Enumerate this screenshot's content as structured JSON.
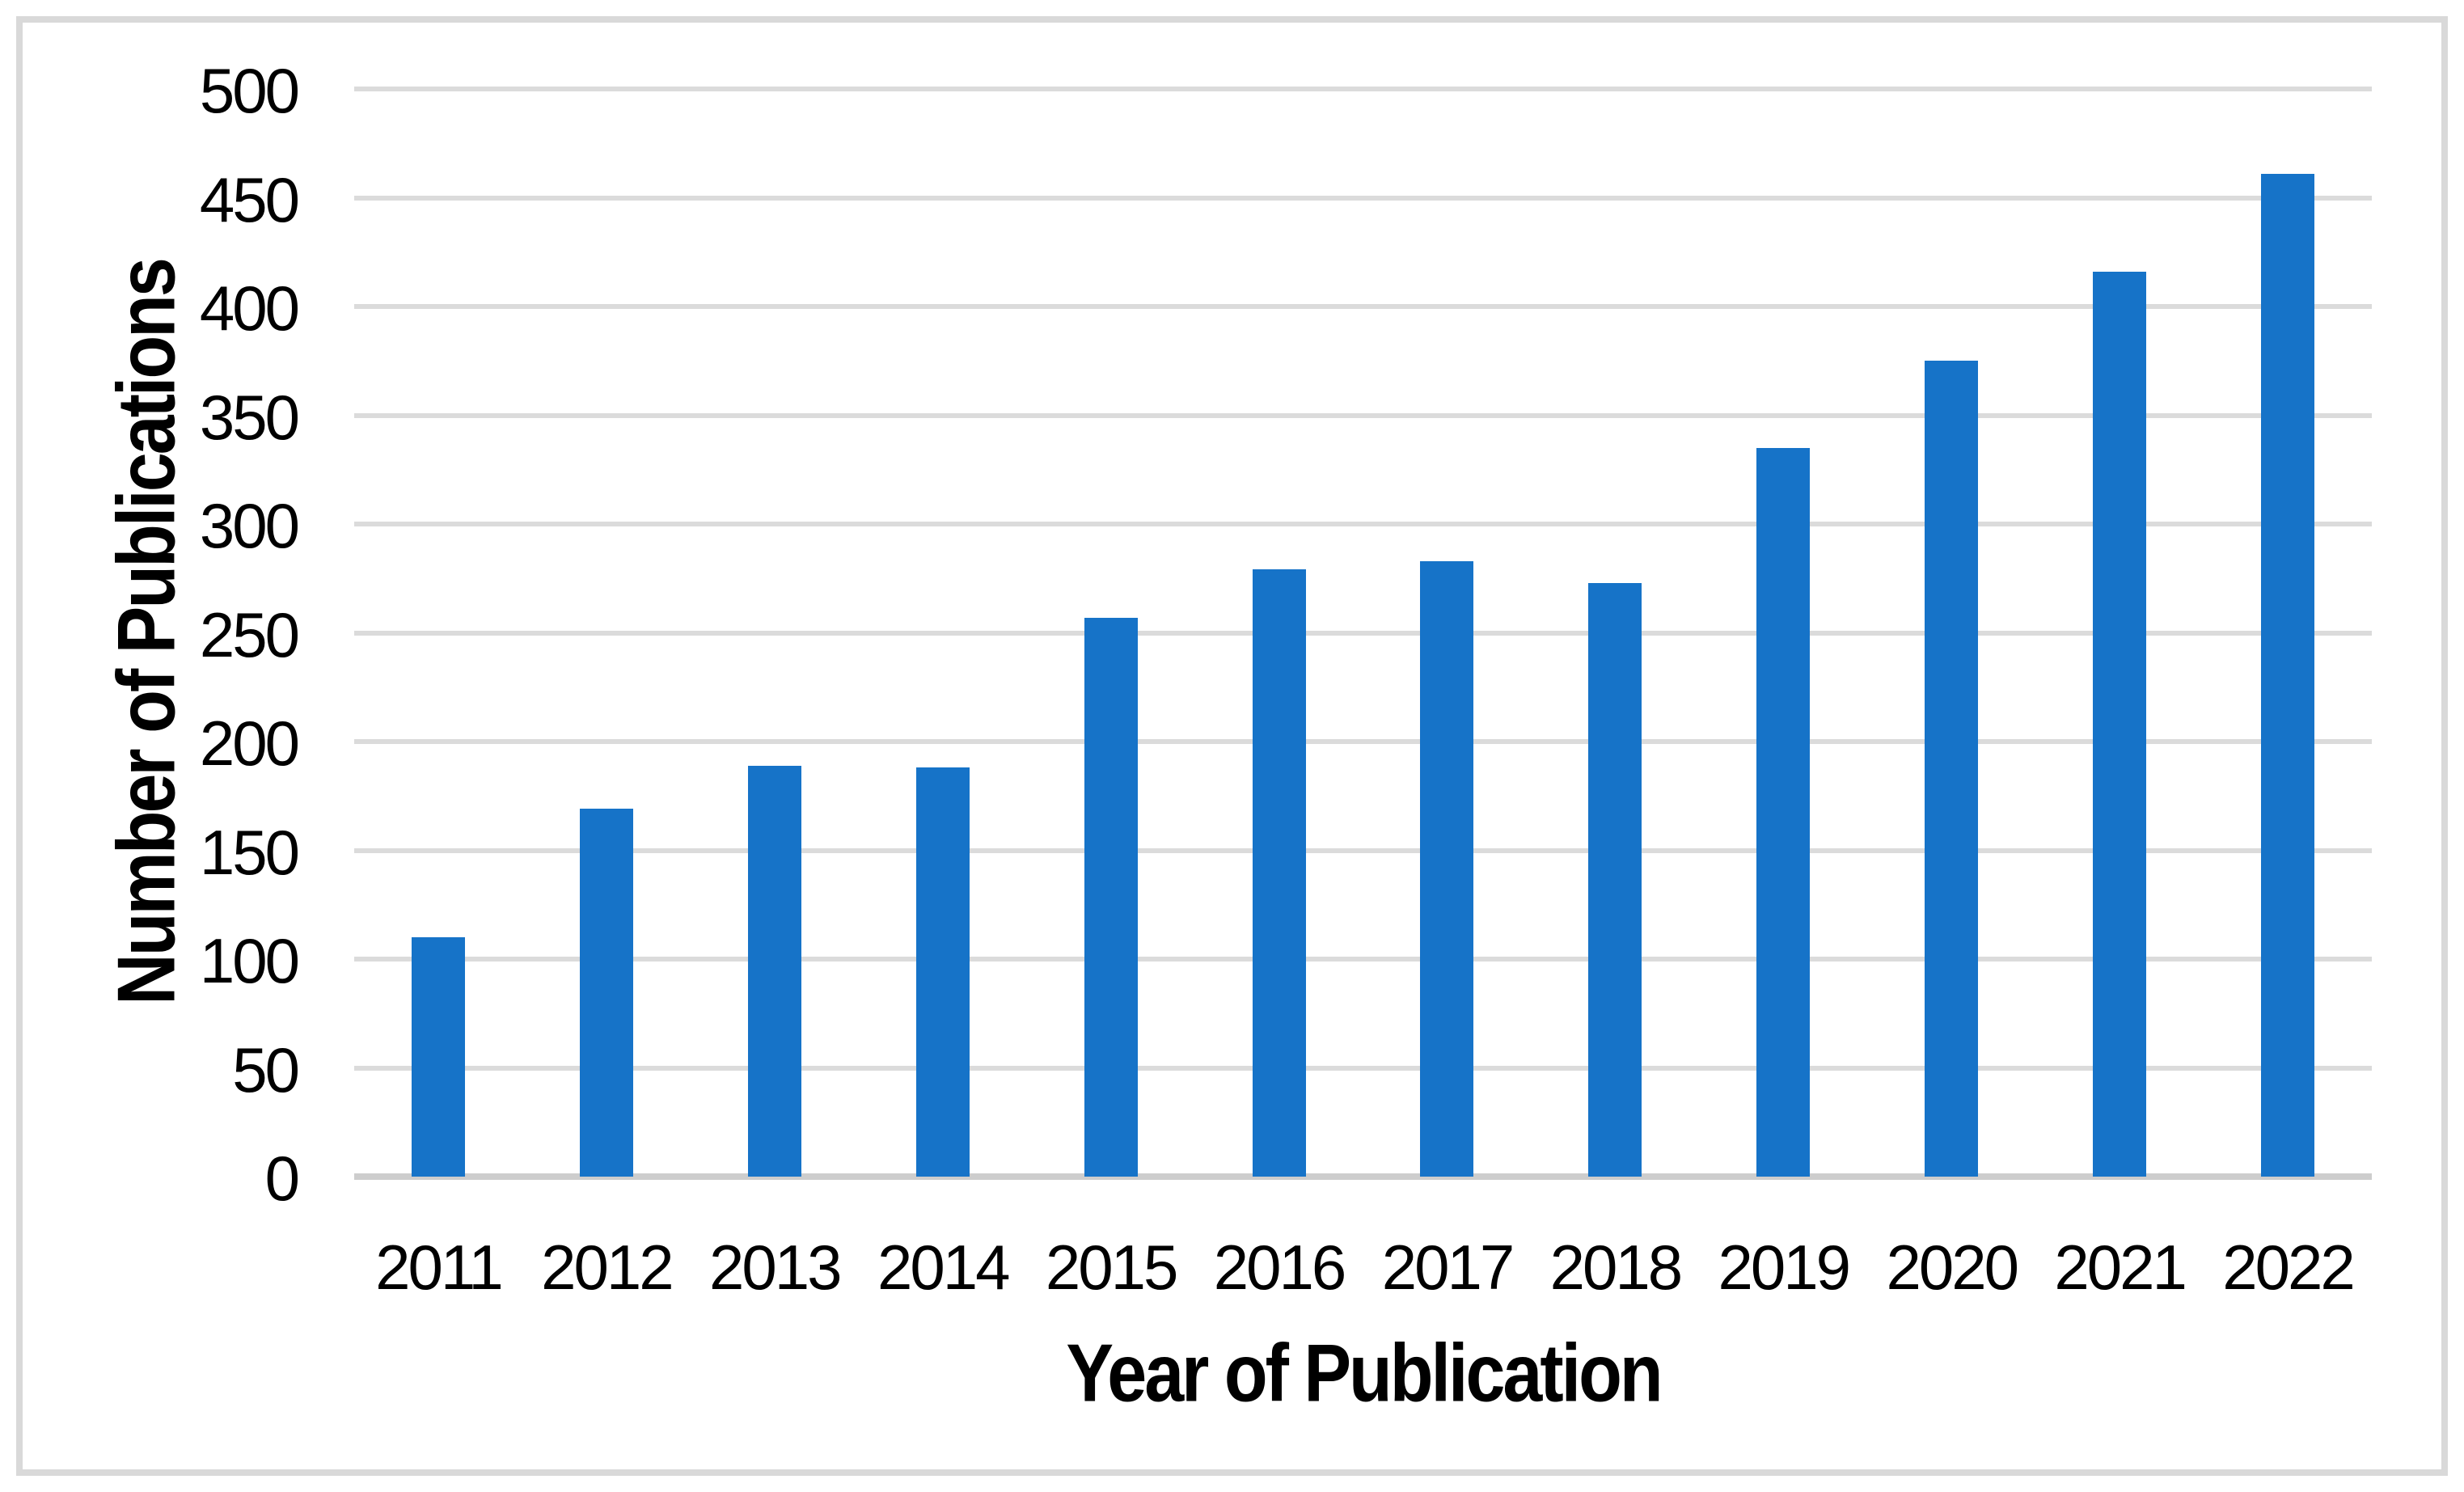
{
  "figure": {
    "background_color": "#FFFFFF",
    "frame_color": "#D9D9D9"
  },
  "chart_data": {
    "type": "bar",
    "title": "",
    "categories": [
      "2011",
      "2012",
      "2013",
      "2014",
      "2015",
      "2016",
      "2017",
      "2018",
      "2019",
      "2020",
      "2021",
      "2022"
    ],
    "values": [
      110,
      169,
      189,
      188,
      257,
      279,
      283,
      273,
      335,
      375,
      416,
      461
    ],
    "xlabel": "Year of Publication",
    "ylabel": "Number of Publications",
    "ylim": [
      0,
      500
    ],
    "ytick_step": 50,
    "yticks": [
      "0",
      "50",
      "100",
      "150",
      "200",
      "250",
      "300",
      "350",
      "400",
      "450",
      "500"
    ],
    "grid": true,
    "legend": "none",
    "bar_color": "#1673C8",
    "gridline_color": "#DBDBDB",
    "axis_line_color": "#CDCDCD",
    "text_color": "#000000"
  }
}
